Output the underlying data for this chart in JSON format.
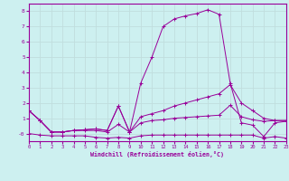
{
  "xlabel": "Windchill (Refroidissement éolien,°C)",
  "background_color": "#cdf0f0",
  "grid_color": "#c0dede",
  "line_color": "#990099",
  "xlim": [
    0,
    23
  ],
  "ylim": [
    -0.5,
    8.5
  ],
  "xticks": [
    0,
    1,
    2,
    3,
    4,
    5,
    6,
    7,
    8,
    9,
    10,
    11,
    12,
    13,
    14,
    15,
    16,
    17,
    18,
    19,
    20,
    21,
    22,
    23
  ],
  "yticks": [
    0,
    1,
    2,
    3,
    4,
    5,
    6,
    7,
    8
  ],
  "ytick_labels": [
    "-0",
    "1",
    "2",
    "3",
    "4",
    "5",
    "6",
    "7",
    "8"
  ],
  "s1_x": [
    0,
    1,
    2,
    3,
    4,
    5,
    6,
    7,
    8,
    9,
    10,
    11,
    12,
    13,
    14,
    15,
    16,
    17,
    18,
    19,
    20,
    21,
    22,
    23
  ],
  "s1_y": [
    0.0,
    -0.1,
    -0.15,
    -0.15,
    -0.15,
    -0.15,
    -0.25,
    -0.3,
    -0.25,
    -0.3,
    -0.15,
    -0.1,
    -0.1,
    -0.1,
    -0.1,
    -0.1,
    -0.1,
    -0.1,
    -0.1,
    -0.1,
    -0.1,
    -0.3,
    -0.2,
    -0.3
  ],
  "s2_x": [
    0,
    1,
    2,
    3,
    4,
    5,
    6,
    7,
    8,
    9,
    10,
    11,
    12,
    13,
    14,
    15,
    16,
    17,
    18,
    19,
    20,
    21,
    22,
    23
  ],
  "s2_y": [
    1.5,
    0.85,
    0.1,
    0.1,
    0.2,
    0.2,
    0.2,
    0.1,
    0.6,
    0.1,
    0.7,
    0.85,
    0.9,
    1.0,
    1.05,
    1.1,
    1.15,
    1.2,
    1.85,
    1.1,
    0.9,
    0.8,
    0.85,
    0.85
  ],
  "s3_x": [
    0,
    1,
    2,
    3,
    4,
    5,
    6,
    7,
    8,
    9,
    10,
    11,
    12,
    13,
    14,
    15,
    16,
    17,
    18,
    19,
    20,
    21,
    22,
    23
  ],
  "s3_y": [
    1.5,
    0.85,
    0.1,
    0.1,
    0.2,
    0.25,
    0.3,
    0.2,
    1.8,
    0.1,
    1.1,
    1.3,
    1.5,
    1.8,
    2.0,
    2.2,
    2.4,
    2.6,
    3.2,
    2.0,
    1.5,
    1.0,
    0.85,
    0.85
  ],
  "s4_x": [
    0,
    1,
    2,
    3,
    4,
    5,
    6,
    7,
    8,
    9,
    10,
    11,
    12,
    13,
    14,
    15,
    16,
    17,
    18,
    19,
    20,
    21,
    22,
    23
  ],
  "s4_y": [
    1.5,
    0.85,
    0.1,
    0.1,
    0.2,
    0.25,
    0.3,
    0.2,
    1.8,
    0.1,
    3.3,
    5.0,
    7.0,
    7.5,
    7.7,
    7.85,
    8.1,
    7.8,
    3.3,
    0.7,
    0.55,
    -0.2,
    0.7,
    0.8
  ]
}
